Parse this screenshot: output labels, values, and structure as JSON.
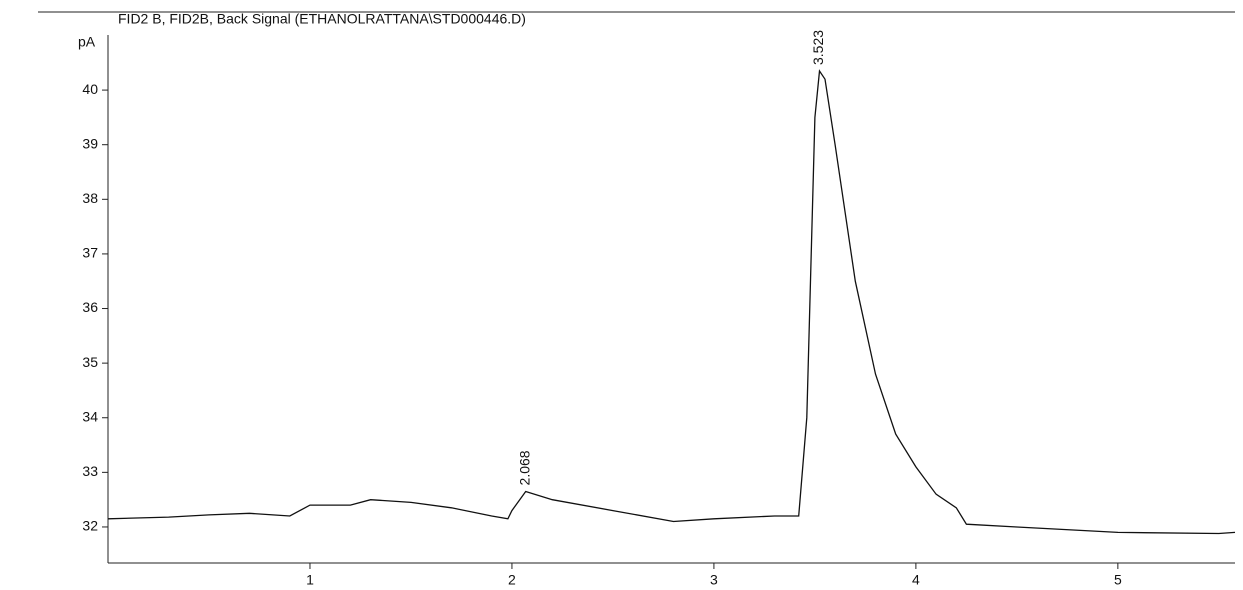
{
  "chart_data": {
    "type": "line",
    "title": "FID2 B, FID2B, Back Signal (ETHANOLRATTANA\\STD000446.D)",
    "y_label": "pA",
    "x": [
      0.0,
      0.3,
      0.5,
      0.7,
      0.9,
      1.0,
      1.2,
      1.3,
      1.5,
      1.7,
      1.9,
      1.98,
      2.0,
      2.068,
      2.2,
      2.5,
      2.8,
      3.0,
      3.3,
      3.42,
      3.46,
      3.5,
      3.523,
      3.55,
      3.6,
      3.7,
      3.8,
      3.9,
      4.0,
      4.1,
      4.2,
      4.25,
      4.5,
      5.0,
      5.5,
      5.58
    ],
    "series": [
      {
        "color": "#111111",
        "values": [
          32.15,
          32.18,
          32.22,
          32.25,
          32.2,
          32.4,
          32.4,
          32.5,
          32.45,
          32.35,
          32.2,
          32.15,
          32.3,
          32.65,
          32.5,
          32.3,
          32.1,
          32.15,
          32.2,
          32.2,
          34.0,
          39.5,
          40.35,
          40.2,
          39.0,
          36.5,
          34.8,
          33.7,
          33.1,
          32.6,
          32.35,
          32.05,
          32.0,
          31.9,
          31.88,
          31.9
        ]
      }
    ],
    "annotations": [
      {
        "x": 2.068,
        "y": 32.65,
        "text": "2.068"
      },
      {
        "x": 3.523,
        "y": 40.35,
        "text": "3.523"
      }
    ],
    "xlim": [
      0,
      5.58
    ],
    "ylim": [
      31.34,
      41.43
    ],
    "xticks": [
      1,
      2,
      3,
      4,
      5
    ],
    "yticks": [
      32,
      33,
      34,
      35,
      36,
      37,
      38,
      39,
      40
    ]
  }
}
